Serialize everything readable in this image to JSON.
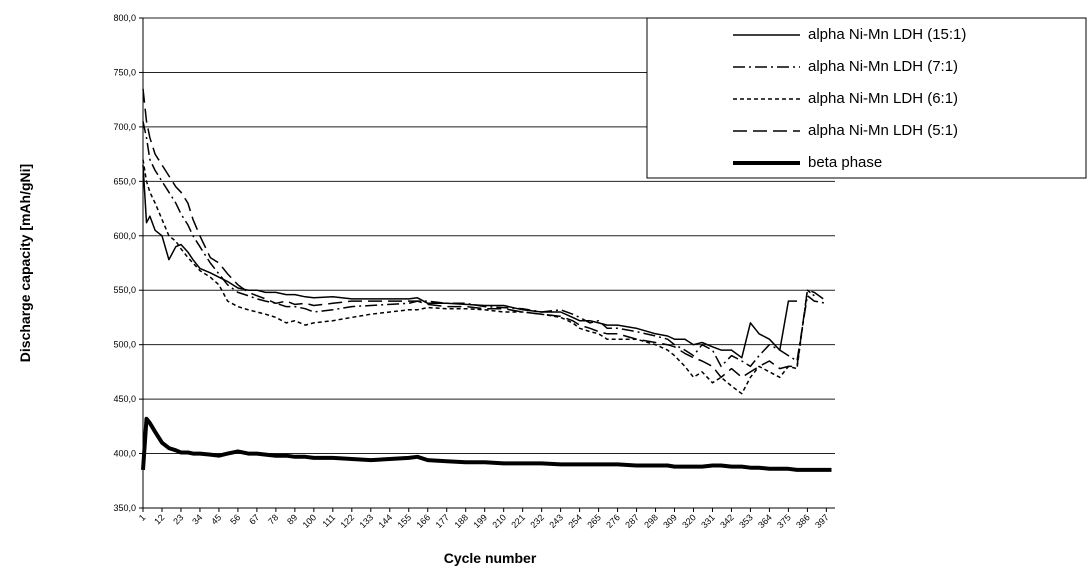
{
  "chart_data": {
    "type": "line",
    "xlabel": "Cycle number",
    "ylabel": "Discharge capacity [mAh/gNi]",
    "x": [
      1,
      3,
      5,
      8,
      12,
      16,
      20,
      23,
      27,
      30,
      34,
      40,
      45,
      50,
      56,
      62,
      67,
      72,
      78,
      84,
      89,
      95,
      100,
      111,
      122,
      133,
      144,
      155,
      160,
      166,
      177,
      188,
      199,
      210,
      221,
      232,
      243,
      250,
      254,
      260,
      265,
      270,
      276,
      287,
      298,
      305,
      309,
      315,
      320,
      325,
      331,
      336,
      342,
      348,
      353,
      358,
      364,
      370,
      375,
      380,
      386,
      390,
      397,
      400
    ],
    "xlim": [
      1,
      402
    ],
    "xticks": [
      1,
      12,
      23,
      34,
      45,
      56,
      67,
      78,
      89,
      100,
      111,
      122,
      133,
      144,
      155,
      166,
      177,
      188,
      199,
      210,
      221,
      232,
      243,
      254,
      265,
      276,
      287,
      298,
      309,
      320,
      331,
      342,
      353,
      364,
      375,
      386,
      397
    ],
    "ylim": [
      350,
      800
    ],
    "yticks": [
      {
        "value": 350,
        "label": "350,0"
      },
      {
        "value": 400,
        "label": "400,0"
      },
      {
        "value": 450,
        "label": "450,0"
      },
      {
        "value": 500,
        "label": "500,0"
      },
      {
        "value": 550,
        "label": "550,0"
      },
      {
        "value": 600,
        "label": "600,0"
      },
      {
        "value": 650,
        "label": "650,0"
      },
      {
        "value": 700,
        "label": "700,0"
      },
      {
        "value": 750,
        "label": "750,0"
      },
      {
        "value": 800,
        "label": "800,0"
      }
    ],
    "grid": true,
    "legend": "upper right",
    "series": [
      {
        "name": "alpha Ni-Mn LDH (15:1)",
        "color": "#000000",
        "dash": "solid",
        "width": 1.5,
        "values": [
          665,
          612,
          618,
          605,
          600,
          578,
          590,
          592,
          585,
          578,
          570,
          566,
          562,
          558,
          552,
          550,
          550,
          548,
          548,
          546,
          546,
          544,
          543,
          544,
          542,
          542,
          542,
          542,
          543,
          538,
          538,
          537,
          536,
          536,
          532,
          530,
          530,
          525,
          522,
          522,
          520,
          518,
          518,
          515,
          510,
          508,
          505,
          505,
          500,
          502,
          498,
          495,
          495,
          488,
          520,
          510,
          505,
          495,
          540,
          540,
          null,
          null,
          null,
          null
        ]
      },
      {
        "name": "alpha Ni-Mn LDH (7:1)",
        "color": "#000000",
        "dash": "dashdot",
        "width": 1.5,
        "values": [
          705,
          690,
          670,
          660,
          650,
          640,
          630,
          620,
          610,
          600,
          590,
          575,
          565,
          555,
          548,
          545,
          542,
          540,
          538,
          535,
          535,
          533,
          530,
          532,
          535,
          536,
          537,
          538,
          540,
          540,
          538,
          538,
          535,
          534,
          533,
          530,
          532,
          528,
          525,
          520,
          522,
          515,
          515,
          512,
          508,
          505,
          500,
          495,
          490,
          500,
          495,
          480,
          490,
          485,
          480,
          490,
          500,
          495,
          490,
          485,
          545,
          540,
          538,
          null
        ]
      },
      {
        "name": "alpha Ni-Mn LDH (6:1)",
        "color": "#000000",
        "dash": "short",
        "width": 1.5,
        "values": [
          670,
          650,
          640,
          630,
          615,
          600,
          595,
          588,
          580,
          575,
          568,
          562,
          555,
          540,
          535,
          532,
          530,
          528,
          525,
          520,
          522,
          518,
          520,
          522,
          525,
          528,
          530,
          532,
          532,
          534,
          533,
          533,
          532,
          530,
          530,
          528,
          525,
          520,
          515,
          512,
          510,
          505,
          505,
          505,
          500,
          495,
          490,
          480,
          470,
          475,
          465,
          470,
          462,
          455,
          470,
          480,
          475,
          470,
          480,
          478,
          550,
          545,
          null,
          null
        ]
      },
      {
        "name": "alpha Ni-Mn LDH (5:1)",
        "color": "#000000",
        "dash": "long",
        "width": 1.5,
        "values": [
          735,
          705,
          690,
          675,
          665,
          655,
          645,
          640,
          630,
          615,
          600,
          580,
          575,
          565,
          555,
          548,
          545,
          542,
          538,
          540,
          537,
          538,
          536,
          538,
          540,
          540,
          540,
          540,
          540,
          537,
          535,
          535,
          533,
          533,
          530,
          528,
          526,
          522,
          518,
          515,
          512,
          510,
          510,
          505,
          502,
          500,
          498,
          492,
          488,
          485,
          480,
          470,
          478,
          470,
          475,
          480,
          485,
          478,
          480,
          480,
          550,
          548,
          540,
          null
        ]
      },
      {
        "name": "beta phase",
        "color": "#000000",
        "dash": "solid",
        "width": 4,
        "values": [
          385,
          432,
          428,
          420,
          410,
          405,
          403,
          401,
          401,
          400,
          400,
          399,
          398,
          400,
          402,
          400,
          400,
          399,
          398,
          398,
          397,
          397,
          396,
          396,
          395,
          394,
          395,
          396,
          397,
          394,
          393,
          392,
          392,
          391,
          391,
          391,
          390,
          390,
          390,
          390,
          390,
          390,
          390,
          389,
          389,
          389,
          388,
          388,
          388,
          388,
          389,
          389,
          388,
          388,
          387,
          387,
          386,
          386,
          386,
          385,
          385,
          385,
          385,
          385
        ]
      }
    ]
  }
}
